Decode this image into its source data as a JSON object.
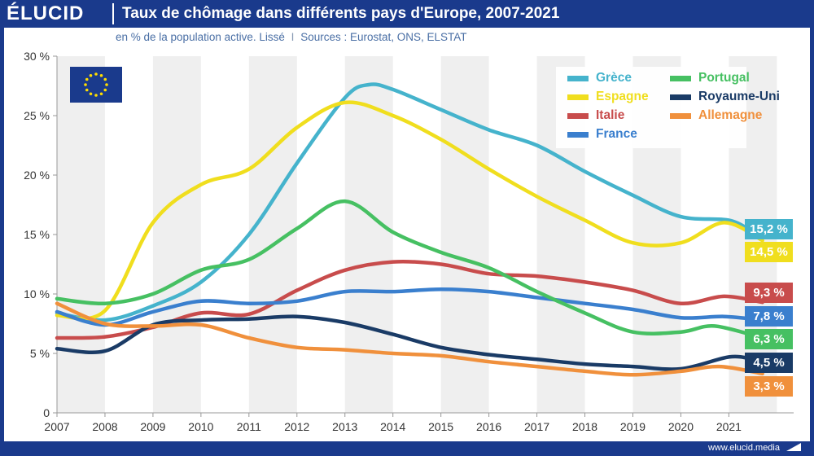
{
  "header": {
    "logo": "ÉLUCID",
    "title": "Taux de chômage dans différents pays d'Europe, 2007-2021"
  },
  "subtitle": {
    "text": "en % de la population active. Lissé",
    "separator": "I",
    "sources": "Sources : Eurostat, ONS, ELSTAT"
  },
  "footer": {
    "url": "www.elucid.media"
  },
  "flag": {
    "name": "eu-flag-icon",
    "color": "#1a3a8c",
    "star_color": "#ffdd00"
  },
  "chart_data": {
    "type": "line",
    "x": [
      2007,
      2008,
      2009,
      2010,
      2011,
      2012,
      2013,
      2014,
      2015,
      2016,
      2017,
      2018,
      2019,
      2020,
      2021
    ],
    "x_tick_labels": [
      "2007",
      "2008",
      "2009",
      "2010",
      "2011",
      "2012",
      "2013",
      "2014",
      "2015",
      "2016",
      "2017",
      "2018",
      "2019",
      "2020",
      "2021"
    ],
    "xlim": [
      2007,
      2022.35
    ],
    "ylim": [
      0,
      30
    ],
    "y_ticks": [
      0,
      5,
      10,
      15,
      20,
      25,
      30
    ],
    "y_tick_labels": [
      "0",
      "5 %",
      "10 %",
      "15 %",
      "20 %",
      "25 %",
      "30 %"
    ],
    "grid": "alternating vertical bands",
    "legend_position": "top-right",
    "series": [
      {
        "name": "Grèce",
        "color": "#45b3cc",
        "end_label": "15,2 %",
        "points": [
          [
            2007,
            8.4
          ],
          [
            2008,
            7.8
          ],
          [
            2009,
            9.0
          ],
          [
            2010,
            11.0
          ],
          [
            2011,
            15.0
          ],
          [
            2012,
            21.0
          ],
          [
            2013,
            26.5
          ],
          [
            2013.5,
            27.6
          ],
          [
            2014,
            27.2
          ],
          [
            2015,
            25.5
          ],
          [
            2016,
            23.8
          ],
          [
            2017,
            22.5
          ],
          [
            2018,
            20.3
          ],
          [
            2019,
            18.3
          ],
          [
            2020,
            16.5
          ],
          [
            2021,
            16.2
          ],
          [
            2021.5,
            15.2
          ]
        ]
      },
      {
        "name": "Espagne",
        "color": "#f0de1e",
        "end_label": "14,5 %",
        "points": [
          [
            2007,
            8.2
          ],
          [
            2008,
            8.6
          ],
          [
            2009,
            16.0
          ],
          [
            2010,
            19.2
          ],
          [
            2011,
            20.5
          ],
          [
            2012,
            24.0
          ],
          [
            2013,
            26.1
          ],
          [
            2014,
            25.0
          ],
          [
            2015,
            23.0
          ],
          [
            2016,
            20.5
          ],
          [
            2017,
            18.2
          ],
          [
            2018,
            16.2
          ],
          [
            2019,
            14.3
          ],
          [
            2020,
            14.3
          ],
          [
            2020.9,
            16.0
          ],
          [
            2021.7,
            14.5
          ]
        ]
      },
      {
        "name": "Italie",
        "color": "#c84c4c",
        "end_label": "9,3 %",
        "points": [
          [
            2007,
            6.3
          ],
          [
            2008,
            6.4
          ],
          [
            2009,
            7.2
          ],
          [
            2010,
            8.4
          ],
          [
            2011,
            8.3
          ],
          [
            2012,
            10.3
          ],
          [
            2013,
            12.0
          ],
          [
            2014,
            12.7
          ],
          [
            2015,
            12.5
          ],
          [
            2016,
            11.7
          ],
          [
            2017,
            11.5
          ],
          [
            2018,
            11.0
          ],
          [
            2019,
            10.3
          ],
          [
            2020,
            9.2
          ],
          [
            2020.9,
            9.8
          ],
          [
            2021.7,
            9.3
          ]
        ]
      },
      {
        "name": "France",
        "color": "#3a7fce",
        "end_label": "7,8 %",
        "points": [
          [
            2007,
            8.5
          ],
          [
            2008,
            7.4
          ],
          [
            2009,
            8.5
          ],
          [
            2010,
            9.4
          ],
          [
            2011,
            9.2
          ],
          [
            2012,
            9.4
          ],
          [
            2013,
            10.2
          ],
          [
            2014,
            10.2
          ],
          [
            2015,
            10.4
          ],
          [
            2016,
            10.2
          ],
          [
            2017,
            9.7
          ],
          [
            2018,
            9.2
          ],
          [
            2019,
            8.7
          ],
          [
            2020,
            8.0
          ],
          [
            2020.9,
            8.1
          ],
          [
            2021.7,
            7.8
          ]
        ]
      },
      {
        "name": "Portugal",
        "color": "#46c062",
        "end_label": "6,3 %",
        "points": [
          [
            2007,
            9.6
          ],
          [
            2008,
            9.2
          ],
          [
            2009,
            10.0
          ],
          [
            2010,
            12.0
          ],
          [
            2011,
            12.9
          ],
          [
            2012,
            15.5
          ],
          [
            2013,
            17.8
          ],
          [
            2014,
            15.2
          ],
          [
            2015,
            13.5
          ],
          [
            2016,
            12.2
          ],
          [
            2017,
            10.2
          ],
          [
            2018,
            8.4
          ],
          [
            2019,
            6.8
          ],
          [
            2020,
            6.8
          ],
          [
            2020.7,
            7.3
          ],
          [
            2021.7,
            6.3
          ]
        ]
      },
      {
        "name": "Royaume-Uni",
        "color": "#1a3b66",
        "end_label": "4,5 %",
        "points": [
          [
            2007,
            5.4
          ],
          [
            2008,
            5.2
          ],
          [
            2009,
            7.4
          ],
          [
            2010,
            7.8
          ],
          [
            2011,
            7.9
          ],
          [
            2012,
            8.1
          ],
          [
            2013,
            7.6
          ],
          [
            2014,
            6.6
          ],
          [
            2015,
            5.5
          ],
          [
            2016,
            4.9
          ],
          [
            2017,
            4.5
          ],
          [
            2018,
            4.1
          ],
          [
            2019,
            3.9
          ],
          [
            2020,
            3.7
          ],
          [
            2021,
            4.7
          ],
          [
            2021.5,
            4.5
          ]
        ]
      },
      {
        "name": "Allemagne",
        "color": "#f0903c",
        "end_label": "3,3 %",
        "points": [
          [
            2007,
            9.2
          ],
          [
            2008,
            7.5
          ],
          [
            2009,
            7.3
          ],
          [
            2010,
            7.4
          ],
          [
            2011,
            6.3
          ],
          [
            2012,
            5.5
          ],
          [
            2013,
            5.3
          ],
          [
            2014,
            5.0
          ],
          [
            2015,
            4.8
          ],
          [
            2016,
            4.3
          ],
          [
            2017,
            3.9
          ],
          [
            2018,
            3.5
          ],
          [
            2019,
            3.2
          ],
          [
            2020,
            3.5
          ],
          [
            2020.8,
            3.9
          ],
          [
            2021.7,
            3.3
          ]
        ]
      }
    ]
  }
}
